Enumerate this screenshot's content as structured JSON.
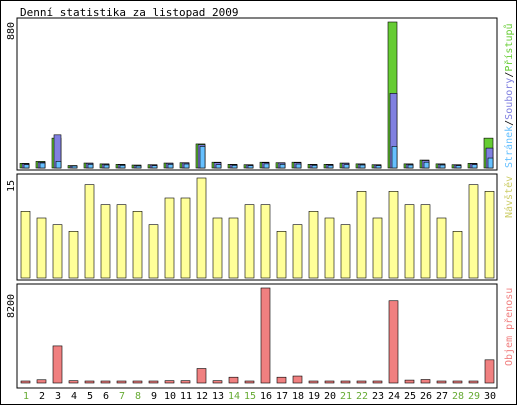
{
  "title": "Denní statistika za listopad 2009",
  "colors": {
    "frame": "#000000",
    "background": "#ffffff",
    "hits_green": "#66cc33",
    "files_purple": "#8080e0",
    "pages_blue": "#66c0ff",
    "visits_yellow": "#ffff99",
    "bytes_red": "#f08080",
    "weekend_label": "#66aa33",
    "weekday_label": "#000000"
  },
  "chart_data": [
    {
      "type": "bar",
      "panel": "top",
      "ymax_label": "880",
      "ylim": [
        0,
        880
      ],
      "categories": [
        "1",
        "2",
        "3",
        "4",
        "5",
        "6",
        "7",
        "8",
        "9",
        "10",
        "11",
        "12",
        "13",
        "14",
        "15",
        "16",
        "17",
        "18",
        "19",
        "20",
        "21",
        "22",
        "23",
        "24",
        "25",
        "26",
        "27",
        "28",
        "29",
        "30"
      ],
      "legend": {
        "hits": "Přístupů",
        "separator": "/",
        "files": "Soubory",
        "pages": "Stránek"
      },
      "series": [
        {
          "name": "Přístupů",
          "values": [
            28,
            40,
            180,
            15,
            30,
            25,
            22,
            18,
            20,
            30,
            32,
            145,
            35,
            22,
            20,
            35,
            32,
            35,
            22,
            22,
            30,
            25,
            20,
            880,
            25,
            48,
            25,
            20,
            28,
            180
          ]
        },
        {
          "name": "Soubory",
          "values": [
            25,
            35,
            200,
            12,
            28,
            22,
            20,
            15,
            18,
            28,
            30,
            140,
            32,
            20,
            18,
            32,
            30,
            32,
            20,
            20,
            28,
            22,
            18,
            450,
            22,
            45,
            22,
            18,
            25,
            120
          ]
        },
        {
          "name": "Stránek",
          "values": [
            20,
            30,
            40,
            10,
            22,
            18,
            16,
            12,
            14,
            22,
            24,
            130,
            20,
            16,
            14,
            25,
            22,
            24,
            16,
            15,
            20,
            18,
            14,
            130,
            18,
            35,
            18,
            14,
            20,
            60
          ]
        }
      ]
    },
    {
      "type": "bar",
      "panel": "middle",
      "ymax_label": "15",
      "ylim": [
        0,
        15
      ],
      "legend": {
        "visits": "Návštěv"
      },
      "series": [
        {
          "name": "Návštěv",
          "values": [
            10,
            9,
            8,
            7,
            14,
            11,
            11,
            10,
            8,
            12,
            12,
            15,
            9,
            9,
            11,
            11,
            7,
            8,
            10,
            9,
            8,
            13,
            9,
            13,
            11,
            11,
            9,
            7,
            14,
            13
          ]
        }
      ]
    },
    {
      "type": "bar",
      "panel": "bottom",
      "ymax_label": "8200",
      "ylim": [
        0,
        8200
      ],
      "legend": {
        "bytes": "Objem přenosu"
      },
      "series": [
        {
          "name": "Objem přenosu",
          "values": [
            80,
            280,
            3200,
            200,
            50,
            60,
            40,
            50,
            60,
            200,
            200,
            1250,
            200,
            500,
            80,
            8200,
            500,
            600,
            60,
            60,
            50,
            60,
            60,
            7100,
            250,
            300,
            60,
            50,
            80,
            2000
          ]
        }
      ]
    }
  ],
  "weekend_days": [
    1,
    7,
    8,
    14,
    15,
    21,
    22,
    28,
    29
  ]
}
